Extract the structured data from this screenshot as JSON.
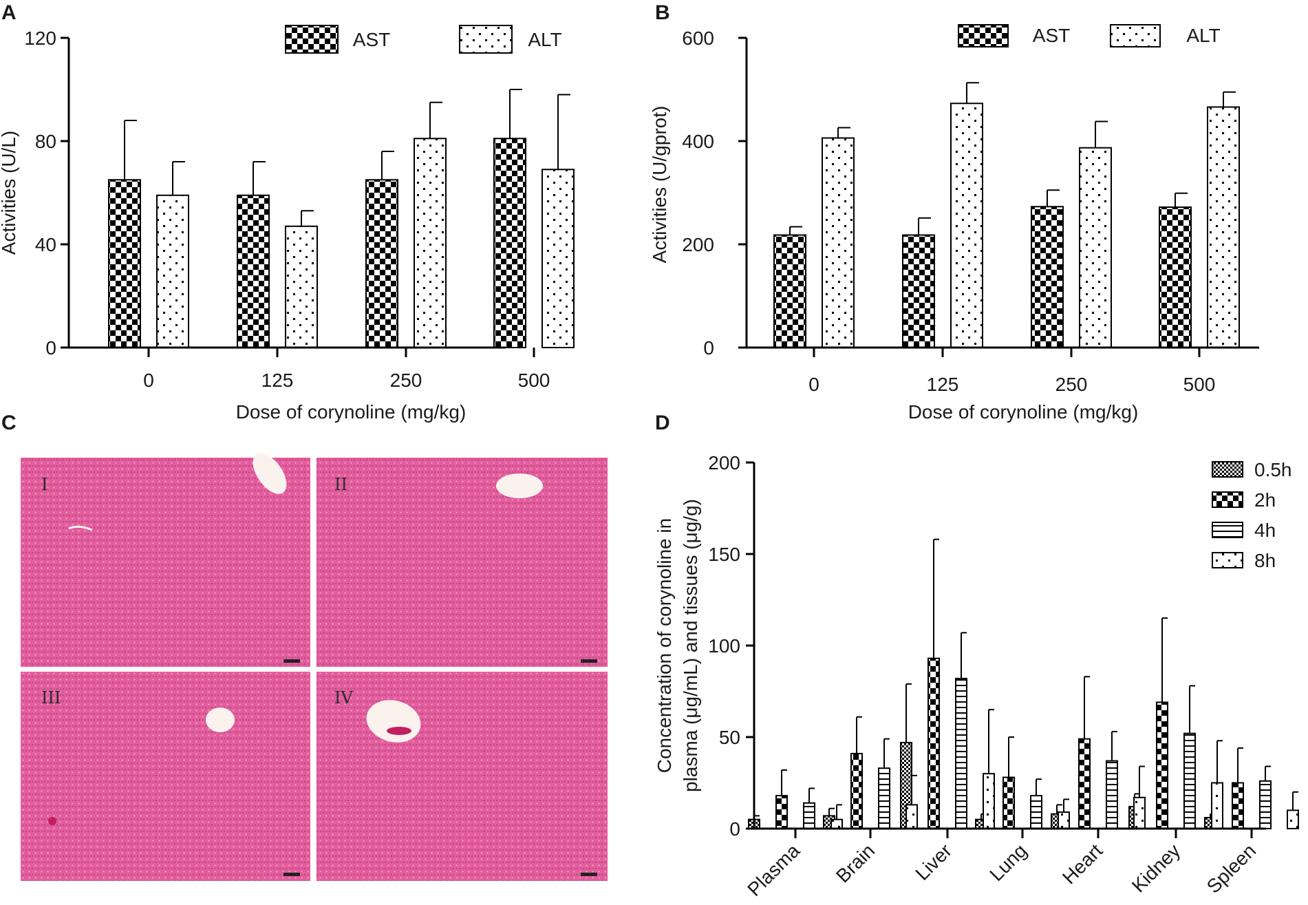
{
  "panels": {
    "A": {
      "letter": "A"
    },
    "B": {
      "letter": "B"
    },
    "C": {
      "letter": "C",
      "image_labels": [
        "I",
        "II",
        "III",
        "IV"
      ]
    },
    "D": {
      "letter": "D"
    }
  },
  "colors": {
    "tissue": "#e45d9c",
    "tissue_dark": "#c83c84",
    "vessel": "#fbf2ee",
    "ink": "#000000"
  },
  "chart_data": [
    {
      "id": "A",
      "type": "bar",
      "title": "",
      "xlabel": "Dose of corynoline (mg/kg)",
      "ylabel": "Activities (U/L)",
      "categories": [
        "0",
        "125",
        "250",
        "500"
      ],
      "ylim": [
        0,
        120
      ],
      "yticks": [
        "0",
        "40",
        "80",
        "120"
      ],
      "legend_position": "top-right",
      "grid": false,
      "series": [
        {
          "name": "AST",
          "pattern": "checker",
          "values": [
            65,
            59,
            65,
            81
          ],
          "errors": [
            23,
            13,
            11,
            19
          ]
        },
        {
          "name": "ALT",
          "pattern": "dots",
          "values": [
            59,
            47,
            81,
            69
          ],
          "errors": [
            13,
            6,
            14,
            29
          ]
        }
      ]
    },
    {
      "id": "B",
      "type": "bar",
      "title": "",
      "xlabel": "Dose of corynoline (mg/kg)",
      "ylabel": "Activities (U/gprot)",
      "categories": [
        "0",
        "125",
        "250",
        "500"
      ],
      "ylim": [
        0,
        600
      ],
      "yticks": [
        "0",
        "200",
        "400",
        "600"
      ],
      "legend_position": "top-right",
      "grid": false,
      "series": [
        {
          "name": "AST",
          "pattern": "checker",
          "values": [
            218,
            218,
            273,
            272
          ],
          "errors": [
            16,
            33,
            32,
            27
          ]
        },
        {
          "name": "ALT",
          "pattern": "dots",
          "values": [
            406,
            473,
            387,
            466
          ],
          "errors": [
            20,
            40,
            51,
            29
          ]
        }
      ]
    },
    {
      "id": "D",
      "type": "bar",
      "title": "",
      "xlabel": "",
      "ylabel": "Concentration of corynoline in plasma (μg/mL) and tissues (μg/g)",
      "ylabel_lines": [
        "Concentration of corynoline in",
        "plasma (μg/mL) and tissues (μg/g)"
      ],
      "categories": [
        "Plasma",
        "Brain",
        "Liver",
        "Lung",
        "Heart",
        "Kidney",
        "Spleen"
      ],
      "ylim": [
        0,
        200
      ],
      "yticks": [
        "0",
        "50",
        "100",
        "150",
        "200"
      ],
      "legend_position": "top-right",
      "grid": false,
      "series": [
        {
          "name": "0.5h",
          "pattern": "fine",
          "values": [
            5,
            7,
            47,
            5,
            8,
            12,
            6
          ],
          "errors": [
            2,
            4,
            32,
            3,
            5,
            7,
            2
          ]
        },
        {
          "name": "2h",
          "pattern": "checker",
          "values": [
            18,
            41,
            93,
            28,
            49,
            69,
            25
          ],
          "errors": [
            14,
            20,
            65,
            22,
            34,
            46,
            19
          ]
        },
        {
          "name": "4h",
          "pattern": "hlines",
          "values": [
            14,
            33,
            82,
            18,
            37,
            52,
            26
          ],
          "errors": [
            8,
            16,
            25,
            9,
            16,
            26,
            8
          ]
        },
        {
          "name": "8h",
          "pattern": "dots",
          "values": [
            5,
            13,
            30,
            9,
            17,
            25,
            10
          ],
          "errors": [
            8,
            16,
            35,
            7,
            17,
            23,
            10
          ]
        }
      ]
    }
  ]
}
